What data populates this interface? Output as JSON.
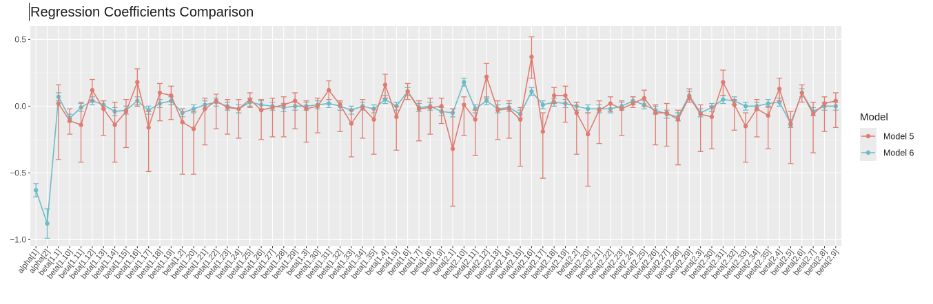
{
  "chart_data": {
    "type": "line",
    "title": "Regression Coefficients Comparison",
    "xlabel": "",
    "ylabel": "",
    "ylim": [
      -1.05,
      0.6
    ],
    "yticks": [
      -1.0,
      -0.5,
      0.0,
      0.5
    ],
    "ytick_labels": [
      "−1.0",
      "−0.5",
      "0.0",
      "0.5"
    ],
    "grid": true,
    "legend": {
      "title": "Model",
      "position": "right"
    },
    "categories": [
      "alpha[1]",
      "alpha[2]",
      "beta[1,1]",
      "beta[1,10]",
      "beta[1,11]",
      "beta[1,12]",
      "beta[1,13]",
      "beta[1,14]",
      "beta[1,15]",
      "beta[1,16]",
      "beta[1,17]",
      "beta[1,18]",
      "beta[1,19]",
      "beta[1,2]",
      "beta[1,20]",
      "beta[1,21]",
      "beta[1,22]",
      "beta[1,23]",
      "beta[1,24]",
      "beta[1,25]",
      "beta[1,26]",
      "beta[1,27]",
      "beta[1,28]",
      "beta[1,29]",
      "beta[1,3]",
      "beta[1,30]",
      "beta[1,31]",
      "beta[1,32]",
      "beta[1,33]",
      "beta[1,34]",
      "beta[1,35]",
      "beta[1,4]",
      "beta[1,5]",
      "beta[1,6]",
      "beta[1,7]",
      "beta[1,8]",
      "beta[1,9]",
      "beta[2,1]",
      "beta[2,10]",
      "beta[2,11]",
      "beta[2,12]",
      "beta[2,13]",
      "beta[2,14]",
      "beta[2,15]",
      "beta[2,16]",
      "beta[2,17]",
      "beta[2,18]",
      "beta[2,19]",
      "beta[2,2]",
      "beta[2,20]",
      "beta[2,21]",
      "beta[2,22]",
      "beta[2,23]",
      "beta[2,24]",
      "beta[2,25]",
      "beta[2,26]",
      "beta[2,27]",
      "beta[2,28]",
      "beta[2,29]",
      "beta[2,3]",
      "beta[2,30]",
      "beta[2,31]",
      "beta[2,32]",
      "beta[2,33]",
      "beta[2,34]",
      "beta[2,35]",
      "beta[2,4]",
      "beta[2,5]",
      "beta[2,6]",
      "beta[2,7]",
      "beta[2,8]",
      "beta[2,9]"
    ],
    "series": [
      {
        "name": "Model 5",
        "color": "#E07B6F",
        "values": [
          null,
          null,
          0.02,
          -0.11,
          -0.14,
          0.12,
          -0.02,
          -0.14,
          -0.04,
          0.18,
          -0.16,
          0.1,
          0.08,
          -0.12,
          -0.17,
          -0.02,
          0.04,
          -0.01,
          -0.02,
          0.05,
          -0.03,
          -0.01,
          0.01,
          0.04,
          -0.02,
          0.0,
          0.12,
          0.01,
          -0.13,
          -0.01,
          -0.1,
          0.16,
          -0.08,
          0.11,
          -0.02,
          -0.01,
          0.0,
          -0.32,
          0.01,
          -0.1,
          0.22,
          -0.03,
          -0.02,
          -0.1,
          0.37,
          -0.19,
          0.08,
          0.08,
          -0.05,
          -0.21,
          -0.03,
          0.02,
          -0.02,
          0.02,
          0.06,
          -0.05,
          -0.05,
          -0.1,
          0.07,
          -0.06,
          -0.08,
          0.18,
          0.01,
          -0.15,
          -0.02,
          -0.07,
          0.13,
          -0.14,
          0.1,
          -0.06,
          0.02,
          0.04
        ],
        "lower": [
          null,
          null,
          -0.4,
          -0.21,
          -0.42,
          0.04,
          -0.22,
          -0.42,
          -0.31,
          0.0,
          -0.49,
          -0.11,
          -0.1,
          -0.51,
          -0.51,
          -0.29,
          -0.17,
          -0.21,
          -0.24,
          -0.01,
          -0.25,
          -0.23,
          -0.23,
          -0.17,
          -0.27,
          -0.2,
          0.05,
          -0.19,
          -0.38,
          -0.24,
          -0.36,
          0.06,
          -0.33,
          0.05,
          -0.26,
          -0.21,
          -0.13,
          -0.75,
          -0.22,
          -0.37,
          0.06,
          -0.25,
          -0.24,
          -0.45,
          0.21,
          -0.54,
          0.02,
          -0.12,
          -0.36,
          -0.6,
          -0.28,
          -0.04,
          -0.22,
          -0.01,
          0.0,
          -0.29,
          -0.3,
          -0.44,
          0.03,
          -0.34,
          -0.32,
          0.08,
          -0.18,
          -0.42,
          -0.23,
          -0.32,
          0.04,
          -0.43,
          0.03,
          -0.35,
          -0.19,
          -0.16
        ],
        "upper": [
          null,
          null,
          0.16,
          -0.02,
          0.03,
          0.2,
          0.04,
          0.03,
          0.05,
          0.28,
          -0.04,
          0.17,
          0.15,
          -0.02,
          -0.04,
          0.06,
          0.09,
          0.05,
          0.05,
          0.1,
          0.05,
          0.06,
          0.07,
          0.1,
          0.04,
          0.06,
          0.19,
          0.04,
          -0.03,
          0.05,
          -0.02,
          0.24,
          0.0,
          0.17,
          0.04,
          0.06,
          0.06,
          -0.02,
          0.07,
          -0.03,
          0.32,
          0.04,
          0.04,
          -0.01,
          0.52,
          -0.05,
          0.14,
          0.15,
          0.03,
          -0.05,
          0.04,
          0.07,
          0.04,
          0.07,
          0.12,
          0.01,
          0.02,
          -0.03,
          0.13,
          0.01,
          0.0,
          0.27,
          0.05,
          -0.05,
          0.05,
          0.0,
          0.21,
          -0.04,
          0.16,
          0.03,
          0.07,
          0.1
        ]
      },
      {
        "name": "Model 6",
        "color": "#6BBCC8",
        "values": [
          -0.63,
          -0.88,
          0.07,
          -0.09,
          -0.01,
          0.04,
          0.01,
          -0.04,
          -0.03,
          0.04,
          -0.03,
          0.02,
          0.04,
          -0.05,
          -0.02,
          0.01,
          0.03,
          0.0,
          -0.02,
          0.03,
          0.01,
          0.0,
          -0.01,
          0.0,
          0.0,
          0.01,
          0.02,
          0.0,
          -0.03,
          0.0,
          -0.02,
          0.05,
          0.0,
          0.11,
          -0.01,
          0.0,
          -0.04,
          -0.05,
          0.18,
          -0.02,
          0.04,
          -0.02,
          -0.01,
          -0.06,
          0.11,
          0.01,
          0.03,
          0.02,
          0.0,
          -0.02,
          -0.02,
          -0.02,
          0.0,
          0.04,
          0.01,
          -0.03,
          -0.06,
          -0.08,
          0.08,
          -0.05,
          -0.01,
          0.05,
          0.04,
          0.0,
          0.0,
          0.02,
          0.03,
          -0.13,
          0.1,
          -0.04,
          0.0,
          0.0
        ]
      }
    ]
  }
}
